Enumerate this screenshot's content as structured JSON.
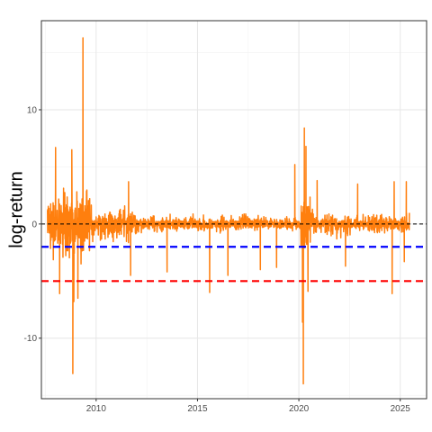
{
  "chart_data": {
    "type": "line",
    "title": "",
    "xlabel": "",
    "ylabel": "log-return",
    "xlim": [
      2007.3,
      2026.3
    ],
    "ylim": [
      -15.3,
      17.8
    ],
    "x_ticks": [
      2010,
      2015,
      2020,
      2025
    ],
    "x_tick_labels": [
      "2010",
      "2015",
      "2020",
      "2025"
    ],
    "y_ticks": [
      -10,
      0,
      10
    ],
    "y_tick_labels": [
      "-10",
      "0",
      "10"
    ],
    "grid": true,
    "legend": "none",
    "x_range": [
      2007.6,
      2025.45
    ],
    "reference_lines": [
      {
        "y": 0,
        "color": "#000000",
        "style": "dashed"
      },
      {
        "y": -2,
        "color": "#0000FF",
        "style": "dashed"
      },
      {
        "y": -5,
        "color": "#FF0000",
        "style": "dashed"
      }
    ],
    "series_color": "#FF7F0E",
    "noise_regimes": [
      {
        "x": [
          2007.6,
          2009.7
        ],
        "amplitude": 3.2
      },
      {
        "x": [
          2009.7,
          2012.0
        ],
        "amplitude": 1.6
      },
      {
        "x": [
          2012.0,
          2020.1
        ],
        "amplitude": 1.0
      },
      {
        "x": [
          2020.1,
          2020.6
        ],
        "amplitude": 3.0
      },
      {
        "x": [
          2020.6,
          2022.0
        ],
        "amplitude": 1.3
      },
      {
        "x": [
          2022.0,
          2025.45
        ],
        "amplitude": 1.1
      }
    ],
    "extreme_points": [
      {
        "x": 2008.8,
        "y": 6.5
      },
      {
        "x": 2008.85,
        "y": -13.1
      },
      {
        "x": 2008.9,
        "y": -6.8
      },
      {
        "x": 2009.1,
        "y": -6.5
      },
      {
        "x": 2009.35,
        "y": 16.3
      },
      {
        "x": 2008.0,
        "y": 6.7
      },
      {
        "x": 2008.2,
        "y": -6.1
      },
      {
        "x": 2011.6,
        "y": 3.7
      },
      {
        "x": 2011.7,
        "y": -4.5
      },
      {
        "x": 2013.5,
        "y": -4.2
      },
      {
        "x": 2015.6,
        "y": -6.0
      },
      {
        "x": 2016.5,
        "y": -4.5
      },
      {
        "x": 2018.1,
        "y": -4.0
      },
      {
        "x": 2018.9,
        "y": -3.8
      },
      {
        "x": 2019.8,
        "y": 5.2
      },
      {
        "x": 2020.18,
        "y": -8.6
      },
      {
        "x": 2020.22,
        "y": -14.0
      },
      {
        "x": 2020.27,
        "y": 8.4
      },
      {
        "x": 2020.35,
        "y": 6.8
      },
      {
        "x": 2020.45,
        "y": -5.9
      },
      {
        "x": 2020.9,
        "y": 3.8
      },
      {
        "x": 2022.3,
        "y": -3.7
      },
      {
        "x": 2022.9,
        "y": 3.5
      },
      {
        "x": 2024.6,
        "y": -6.1
      },
      {
        "x": 2024.7,
        "y": 3.7
      },
      {
        "x": 2025.2,
        "y": -3.3
      },
      {
        "x": 2025.3,
        "y": 3.7
      }
    ]
  }
}
